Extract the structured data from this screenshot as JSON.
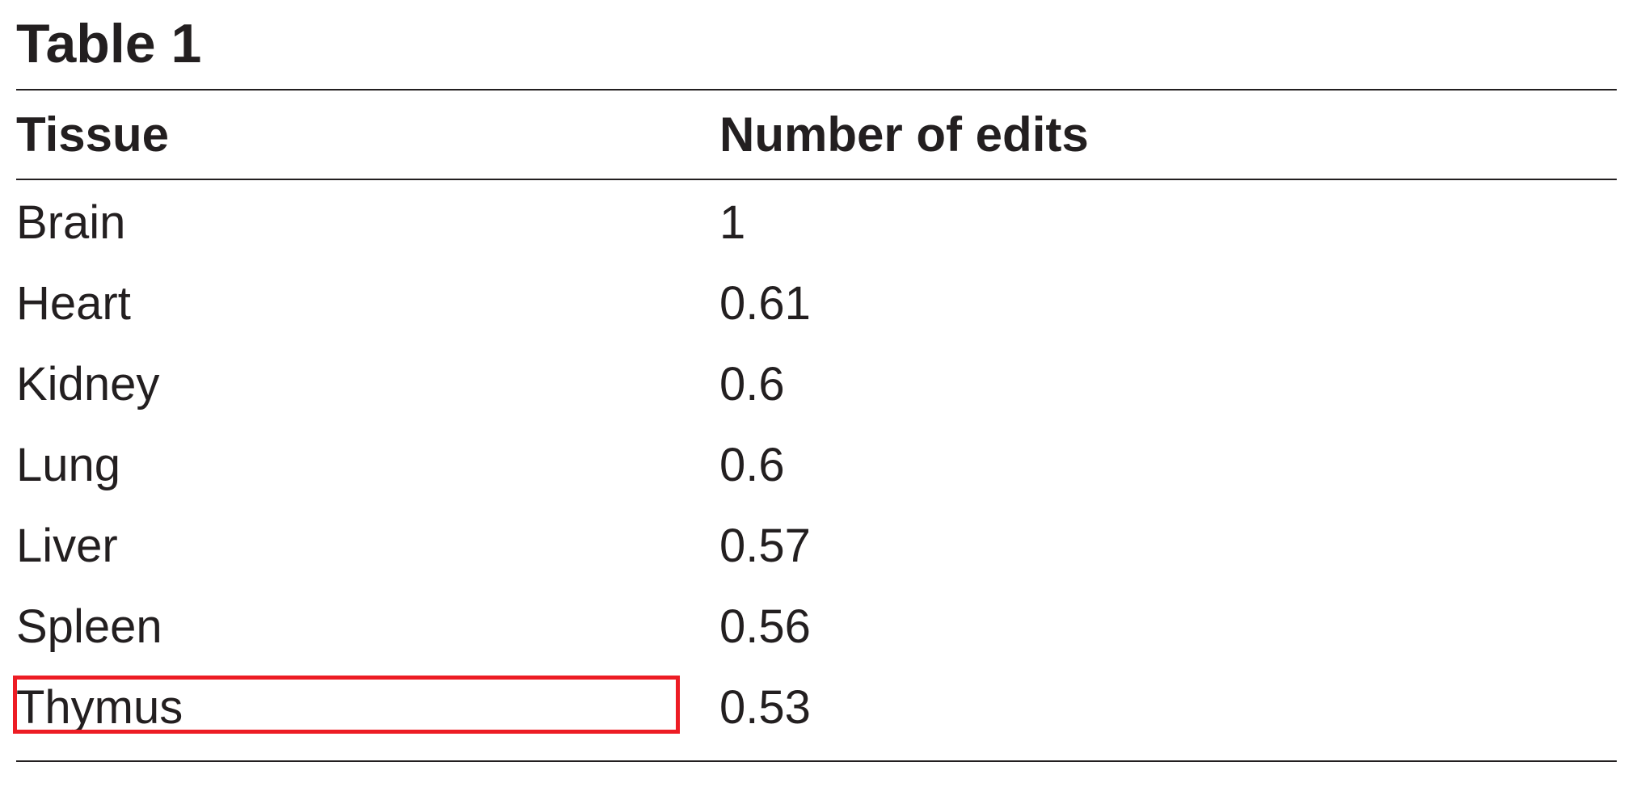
{
  "title": "Table 1",
  "columns": [
    "Tissue",
    "Number of edits"
  ],
  "rows": [
    {
      "tissue": "Brain",
      "edits": "1"
    },
    {
      "tissue": "Heart",
      "edits": "0.61"
    },
    {
      "tissue": "Kidney",
      "edits": "0.6"
    },
    {
      "tissue": "Lung",
      "edits": "0.6"
    },
    {
      "tissue": "Liver",
      "edits": "0.57"
    },
    {
      "tissue": "Spleen",
      "edits": "0.56"
    },
    {
      "tissue": "Thymus",
      "edits": "0.53"
    }
  ],
  "highlight": {
    "row": "Thymus",
    "column": "Tissue",
    "color": "#ed1c24"
  }
}
